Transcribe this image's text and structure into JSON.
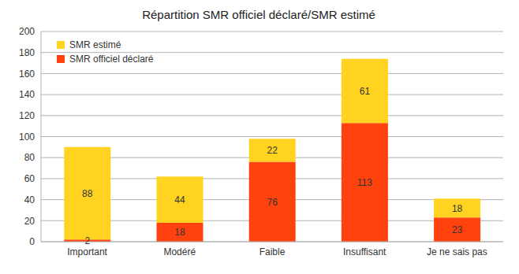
{
  "chart_data": {
    "type": "bar",
    "title": "Répartition SMR officiel déclaré/SMR estimé",
    "categories": [
      "Important",
      "Modéré",
      "Faible",
      "Insuffisant",
      "Je ne sais pas"
    ],
    "series": [
      {
        "name": "SMR officiel déclaré",
        "color": "#ff420e",
        "values": [
          2,
          18,
          76,
          113,
          23
        ]
      },
      {
        "name": "SMR estimé",
        "color": "#ffd320",
        "values": [
          88,
          44,
          22,
          61,
          18
        ]
      }
    ],
    "stacked": true,
    "data_labels": true,
    "ylim": [
      0,
      200
    ],
    "yticks": [
      0,
      20,
      40,
      60,
      80,
      100,
      120,
      140,
      160,
      180,
      200
    ],
    "grid": true,
    "legend": "top-left"
  }
}
